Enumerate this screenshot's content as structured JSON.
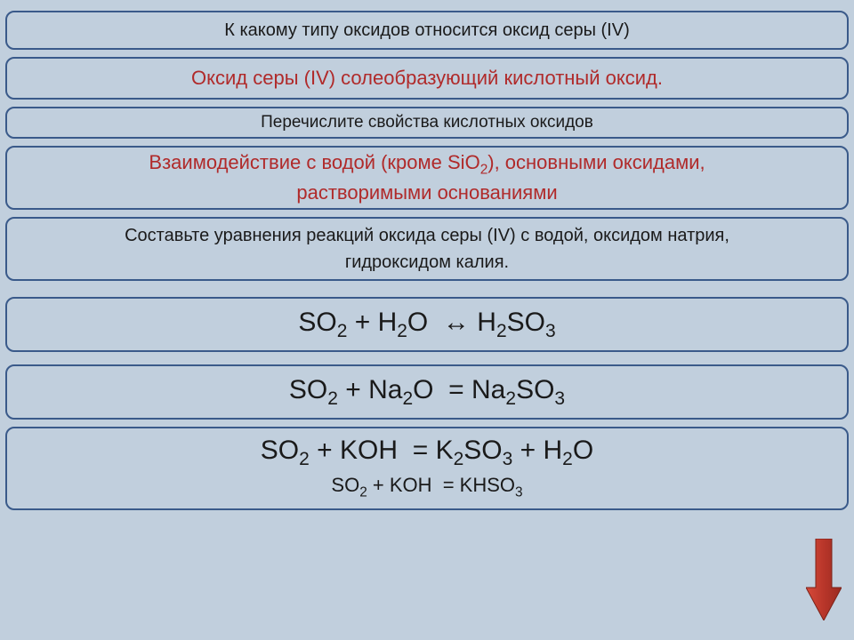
{
  "q1": "К какому типу оксидов относится оксид серы (IV)",
  "a1": "Оксид серы (IV) солеобразующий кислотный оксид.",
  "q2": "Перечислите свойства кислотных оксидов",
  "a2_line1_pre": "Взаимодействие с водой (кроме SiO",
  "a2_line1_post": "), основными оксидами,",
  "a2_line2": "растворимыми основаниями",
  "q3_line1": "Составьте уравнения реакций оксида серы (IV) с водой, оксидом натрия,",
  "q3_line2": "гидроксидом калия.",
  "eq1_html": "SO<sub>2</sub> + H<sub>2</sub>O&nbsp;&nbsp;↔&nbsp;H<sub>2</sub>SO<sub>3</sub>",
  "eq2_html": "SO<sub>2</sub> + Na<sub>2</sub>O&nbsp;&nbsp;=&nbsp;Na<sub>2</sub>SO<sub>3</sub>",
  "eq3a_html": "SO<sub>2</sub> + KOH&nbsp;&nbsp;=&nbsp;K<sub>2</sub>SO<sub>3</sub> + H<sub>2</sub>O",
  "eq3b_html": "SO<sub>2</sub> + KOH&nbsp;&nbsp;=&nbsp;KHSO<sub>3</sub>",
  "colors": {
    "background": "#c1cfdd",
    "border": "#3a5a8a",
    "text_black": "#1a1a1a",
    "text_red": "#b02a2a",
    "arrow_fill": "#c0392b",
    "arrow_stroke": "#8a2a20"
  }
}
